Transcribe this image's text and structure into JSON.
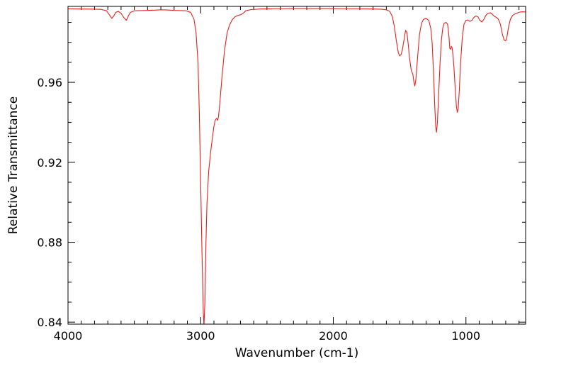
{
  "chart_data": {
    "type": "line",
    "title": "",
    "xlabel": "Wavenumber (cm-1)",
    "ylabel": "Relative Transmittance",
    "xlim": [
      4000,
      550
    ],
    "ylim": [
      0.839,
      0.998
    ],
    "x_reversed": true,
    "grid": false,
    "legend": "none",
    "x_ticks": [
      4000,
      3000,
      2000,
      1000
    ],
    "x_tick_labels": [
      "4000",
      "3000",
      "2000",
      "1000"
    ],
    "x_minor_step": 100,
    "y_ticks": [
      0.84,
      0.88,
      0.92,
      0.96
    ],
    "y_tick_labels": [
      "0.84",
      "0.88",
      "0.92",
      "0.96"
    ],
    "y_minor_step": 0.01,
    "series": [
      {
        "color": "#e8201e",
        "points": [
          [
            4000,
            0.9968
          ],
          [
            3900,
            0.9967
          ],
          [
            3800,
            0.9966
          ],
          [
            3750,
            0.9965
          ],
          [
            3710,
            0.9958
          ],
          [
            3685,
            0.9935
          ],
          [
            3670,
            0.992
          ],
          [
            3655,
            0.9932
          ],
          [
            3640,
            0.995
          ],
          [
            3620,
            0.9955
          ],
          [
            3600,
            0.9945
          ],
          [
            3580,
            0.9925
          ],
          [
            3560,
            0.991
          ],
          [
            3545,
            0.9932
          ],
          [
            3530,
            0.995
          ],
          [
            3500,
            0.9958
          ],
          [
            3450,
            0.9959
          ],
          [
            3400,
            0.996
          ],
          [
            3350,
            0.9961
          ],
          [
            3300,
            0.9963
          ],
          [
            3250,
            0.9962
          ],
          [
            3200,
            0.996
          ],
          [
            3150,
            0.9959
          ],
          [
            3110,
            0.9958
          ],
          [
            3075,
            0.995
          ],
          [
            3050,
            0.9915
          ],
          [
            3035,
            0.985
          ],
          [
            3020,
            0.97
          ],
          [
            3010,
            0.945
          ],
          [
            3000,
            0.91
          ],
          [
            2990,
            0.875
          ],
          [
            2980,
            0.845
          ],
          [
            2975,
            0.838
          ],
          [
            2968,
            0.85
          ],
          [
            2960,
            0.88
          ],
          [
            2952,
            0.9
          ],
          [
            2940,
            0.915
          ],
          [
            2925,
            0.925
          ],
          [
            2910,
            0.933
          ],
          [
            2900,
            0.938
          ],
          [
            2890,
            0.941
          ],
          [
            2880,
            0.942
          ],
          [
            2872,
            0.941
          ],
          [
            2865,
            0.943
          ],
          [
            2855,
            0.95
          ],
          [
            2840,
            0.962
          ],
          [
            2820,
            0.976
          ],
          [
            2800,
            0.985
          ],
          [
            2780,
            0.989
          ],
          [
            2760,
            0.9915
          ],
          [
            2740,
            0.9928
          ],
          [
            2720,
            0.9935
          ],
          [
            2700,
            0.9938
          ],
          [
            2680,
            0.9945
          ],
          [
            2660,
            0.9958
          ],
          [
            2620,
            0.9964
          ],
          [
            2550,
            0.9967
          ],
          [
            2450,
            0.9968
          ],
          [
            2300,
            0.9969
          ],
          [
            2200,
            0.9969
          ],
          [
            2100,
            0.9969
          ],
          [
            2000,
            0.9969
          ],
          [
            1900,
            0.9968
          ],
          [
            1800,
            0.9968
          ],
          [
            1700,
            0.9967
          ],
          [
            1640,
            0.9966
          ],
          [
            1600,
            0.9963
          ],
          [
            1575,
            0.9955
          ],
          [
            1555,
            0.993
          ],
          [
            1540,
            0.988
          ],
          [
            1525,
            0.981
          ],
          [
            1510,
            0.975
          ],
          [
            1500,
            0.9732
          ],
          [
            1490,
            0.9738
          ],
          [
            1480,
            0.976
          ],
          [
            1465,
            0.982
          ],
          [
            1455,
            0.986
          ],
          [
            1445,
            0.985
          ],
          [
            1435,
            0.979
          ],
          [
            1425,
            0.972
          ],
          [
            1412,
            0.966
          ],
          [
            1400,
            0.964
          ],
          [
            1392,
            0.96
          ],
          [
            1385,
            0.9582
          ],
          [
            1378,
            0.961
          ],
          [
            1365,
            0.972
          ],
          [
            1350,
            0.984
          ],
          [
            1335,
            0.9895
          ],
          [
            1320,
            0.9915
          ],
          [
            1300,
            0.992
          ],
          [
            1280,
            0.991
          ],
          [
            1265,
            0.987
          ],
          [
            1255,
            0.98
          ],
          [
            1245,
            0.966
          ],
          [
            1235,
            0.948
          ],
          [
            1228,
            0.938
          ],
          [
            1222,
            0.935
          ],
          [
            1215,
            0.94
          ],
          [
            1205,
            0.955
          ],
          [
            1195,
            0.97
          ],
          [
            1185,
            0.981
          ],
          [
            1175,
            0.987
          ],
          [
            1165,
            0.9895
          ],
          [
            1150,
            0.99
          ],
          [
            1138,
            0.989
          ],
          [
            1128,
            0.983
          ],
          [
            1122,
            0.977
          ],
          [
            1116,
            0.9765
          ],
          [
            1110,
            0.978
          ],
          [
            1105,
            0.9775
          ],
          [
            1098,
            0.974
          ],
          [
            1090,
            0.967
          ],
          [
            1080,
            0.956
          ],
          [
            1072,
            0.948
          ],
          [
            1065,
            0.945
          ],
          [
            1058,
            0.947
          ],
          [
            1050,
            0.956
          ],
          [
            1040,
            0.97
          ],
          [
            1028,
            0.982
          ],
          [
            1015,
            0.989
          ],
          [
            1000,
            0.991
          ],
          [
            985,
            0.9912
          ],
          [
            970,
            0.9905
          ],
          [
            955,
            0.991
          ],
          [
            940,
            0.9925
          ],
          [
            925,
            0.9932
          ],
          [
            910,
            0.9928
          ],
          [
            895,
            0.991
          ],
          [
            880,
            0.9902
          ],
          [
            865,
            0.9915
          ],
          [
            850,
            0.9935
          ],
          [
            835,
            0.9945
          ],
          [
            815,
            0.9948
          ],
          [
            800,
            0.994
          ],
          [
            785,
            0.993
          ],
          [
            770,
            0.9925
          ],
          [
            755,
            0.9915
          ],
          [
            740,
            0.989
          ],
          [
            725,
            0.984
          ],
          [
            712,
            0.9812
          ],
          [
            700,
            0.9808
          ],
          [
            690,
            0.983
          ],
          [
            678,
            0.988
          ],
          [
            665,
            0.9915
          ],
          [
            648,
            0.9935
          ],
          [
            630,
            0.9942
          ],
          [
            610,
            0.9948
          ],
          [
            590,
            0.9952
          ],
          [
            570,
            0.9953
          ],
          [
            550,
            0.9952
          ]
        ]
      }
    ]
  }
}
